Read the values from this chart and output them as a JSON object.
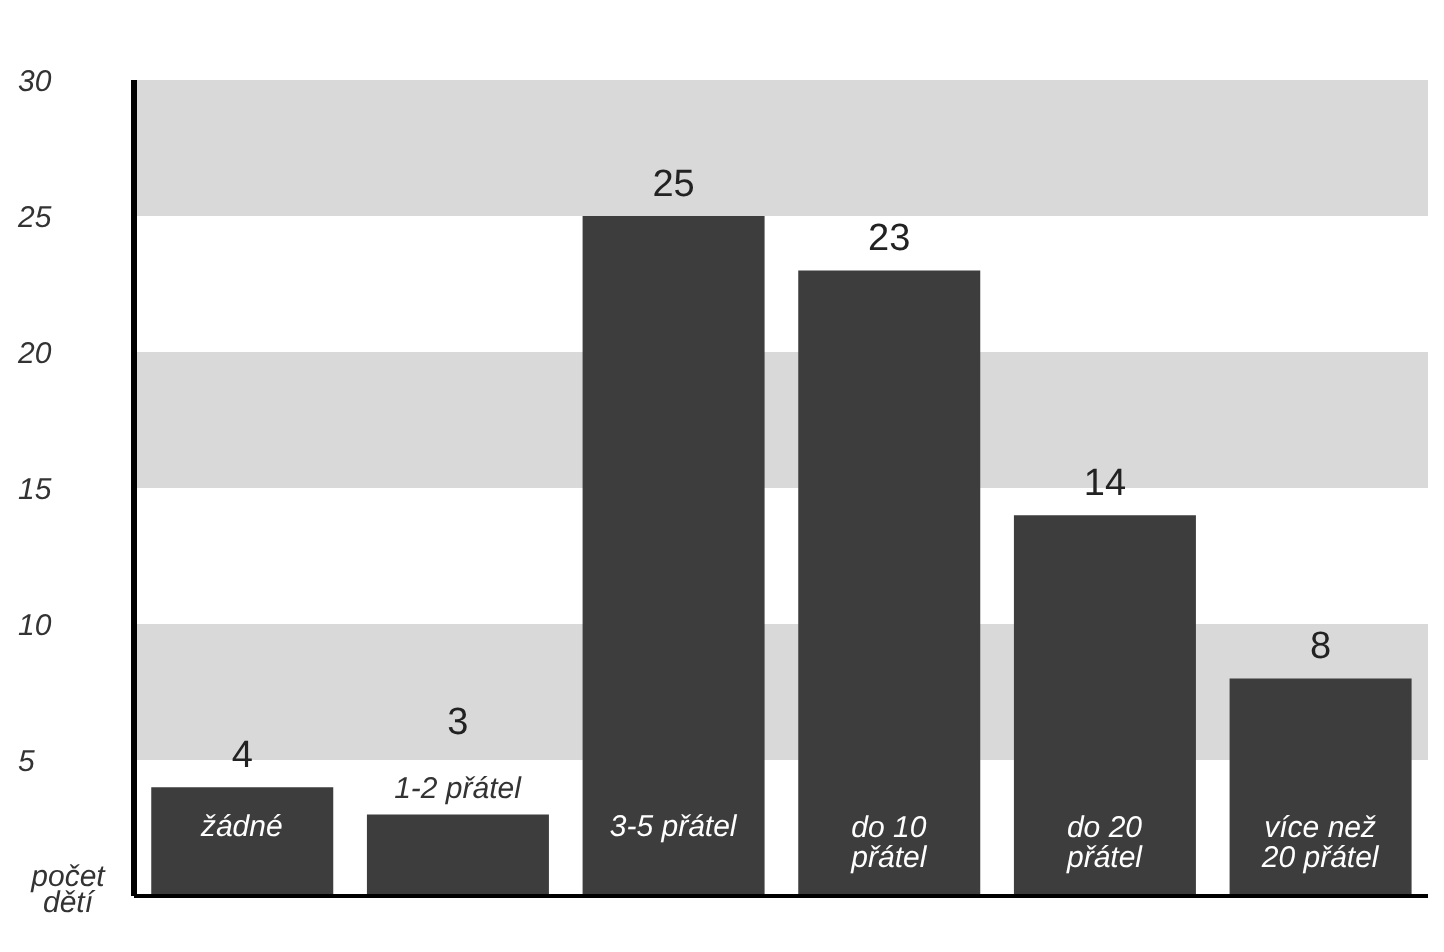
{
  "chart_data": {
    "type": "bar",
    "ylabel": "počet dětí",
    "categories": [
      "žádné",
      "1-2 přátel",
      "3-5 přátel",
      "do 10 přátel",
      "do 20 přátel",
      "více než 20 přátel"
    ],
    "values": [
      4,
      3,
      25,
      23,
      14,
      8
    ],
    "color": "#3d3d3d",
    "ylim": [
      0,
      30
    ],
    "yticks": [
      5,
      10,
      15,
      20,
      25,
      30
    ],
    "grid": false,
    "data_labels": true,
    "bands": [
      {
        "axis": "y",
        "from": 5,
        "to": 10,
        "color": "#d9d9d9"
      },
      {
        "axis": "y",
        "from": 15,
        "to": 20,
        "color": "#d9d9d9"
      },
      {
        "axis": "y",
        "from": 25,
        "to": 30,
        "color": "#d9d9d9"
      }
    ]
  }
}
